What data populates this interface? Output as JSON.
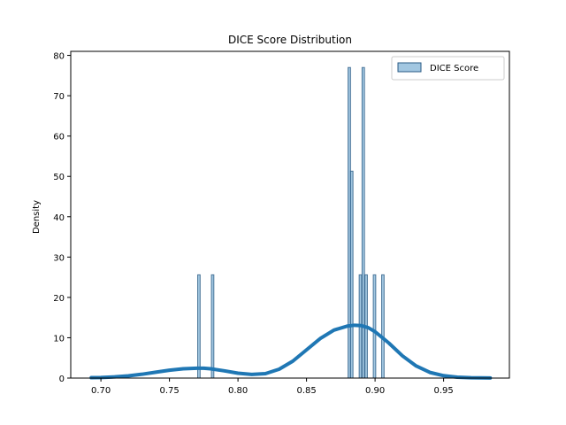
{
  "chart_data": {
    "type": "bar",
    "title": "DICE Score Distribution",
    "xlabel": "",
    "ylabel": "Density",
    "xlim": [
      0.678,
      0.998
    ],
    "ylim": [
      0,
      81
    ],
    "xticks": [
      0.7,
      0.75,
      0.8,
      0.85,
      0.9,
      0.95
    ],
    "xtick_labels": [
      "0.70",
      "0.75",
      "0.80",
      "0.85",
      "0.90",
      "0.95"
    ],
    "yticks": [
      0,
      10,
      20,
      30,
      40,
      50,
      60,
      70,
      80
    ],
    "ytick_labels": [
      "0",
      "10",
      "20",
      "30",
      "40",
      "50",
      "60",
      "70",
      "80"
    ],
    "grid": false,
    "legend_position": "top-right",
    "series": [
      {
        "name": "DICE Score",
        "kind": "histogram",
        "color": "#7bafd4",
        "edge_color": "#2a5b85",
        "bin_width": 0.0018,
        "bins": [
          {
            "x": 0.7715,
            "value": 25.6
          },
          {
            "x": 0.7815,
            "value": 25.6
          },
          {
            "x": 0.8812,
            "value": 77.0
          },
          {
            "x": 0.883,
            "value": 51.3
          },
          {
            "x": 0.8893,
            "value": 25.6
          },
          {
            "x": 0.8914,
            "value": 77.0
          },
          {
            "x": 0.8935,
            "value": 25.6
          },
          {
            "x": 0.8996,
            "value": 25.6
          },
          {
            "x": 0.9057,
            "value": 25.6
          }
        ]
      },
      {
        "name": "",
        "kind": "kde",
        "color": "#1f77b4",
        "x": [
          0.693,
          0.7,
          0.71,
          0.72,
          0.73,
          0.74,
          0.75,
          0.76,
          0.77,
          0.775,
          0.78,
          0.79,
          0.8,
          0.81,
          0.82,
          0.83,
          0.84,
          0.85,
          0.86,
          0.87,
          0.88,
          0.885,
          0.89,
          0.895,
          0.9,
          0.91,
          0.92,
          0.93,
          0.94,
          0.95,
          0.96,
          0.97,
          0.984
        ],
        "y": [
          0.1,
          0.15,
          0.3,
          0.55,
          0.95,
          1.45,
          1.95,
          2.3,
          2.45,
          2.45,
          2.3,
          1.8,
          1.2,
          0.9,
          1.1,
          2.2,
          4.2,
          7.0,
          9.8,
          11.9,
          12.9,
          13.1,
          13.0,
          12.5,
          11.5,
          8.7,
          5.5,
          3.0,
          1.4,
          0.6,
          0.22,
          0.07,
          0.02
        ]
      }
    ]
  }
}
